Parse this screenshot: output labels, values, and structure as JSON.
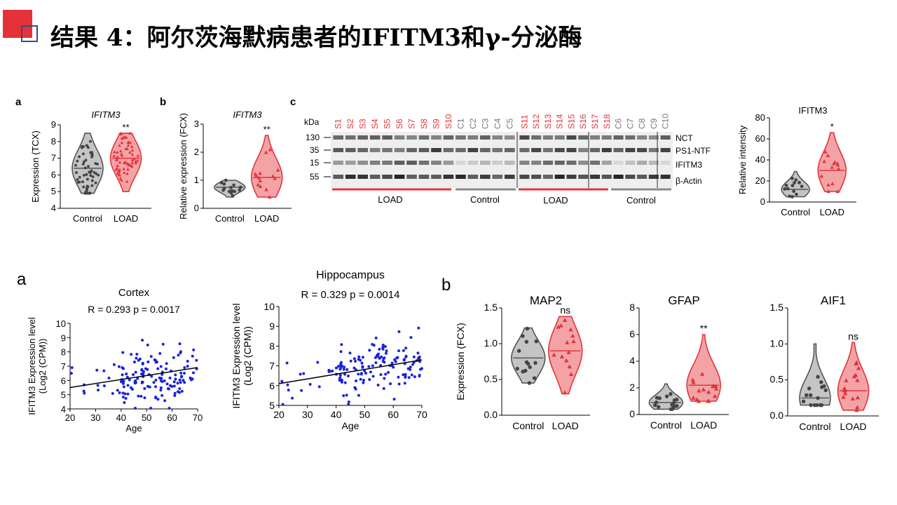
{
  "slide": {
    "title": "结果 4：阿尔茨海默病患者的IFITM3和γ-分泌酶"
  },
  "colors": {
    "accent_red": "#e53238",
    "accent_blue": "#2e4f8a",
    "control": "#555555",
    "load": "#e2343a",
    "scatter": "#1a24d8"
  },
  "panels": {
    "a": {
      "label": "a",
      "title": "IFITM3",
      "sig": "**"
    },
    "b": {
      "label": "b",
      "title": "IFITM3",
      "sig": "**"
    },
    "c": {
      "label": "c",
      "kda_label": "kDa",
      "mw_markers": [
        "130",
        "35",
        "15",
        "55"
      ],
      "lanes_left": [
        "S1",
        "S2",
        "S3",
        "S4",
        "S5",
        "S6",
        "S7",
        "S8",
        "S9",
        "S10",
        "C1",
        "C2",
        "C3",
        "C4",
        "C5"
      ],
      "lanes_right": [
        "S11",
        "S12",
        "S13",
        "S14",
        "S15",
        "S16",
        "S17",
        "S18",
        "C6",
        "C7",
        "C8",
        "C9",
        "C10"
      ],
      "bands": [
        "NCT",
        "PS1-NTF",
        "IFITM3",
        "β-Actin"
      ],
      "groups": [
        "LOAD",
        "Control",
        "LOAD",
        "Control"
      ]
    },
    "c_violin": {
      "title": "IFITM3",
      "sig": "*"
    },
    "a2": {
      "label": "a"
    },
    "b2": {
      "label": "b"
    }
  },
  "chart_data": [
    {
      "id": "a",
      "type": "violin",
      "title": "IFITM3",
      "ylabel": "Expression (TCX)",
      "ylim": [
        4,
        9
      ],
      "yticks": [
        4,
        5,
        6,
        7,
        8,
        9
      ],
      "categories": [
        "Control",
        "LOAD"
      ],
      "significance": "**",
      "series": [
        {
          "name": "Control",
          "median": 6.4,
          "min": 4.9,
          "max": 8.5
        },
        {
          "name": "LOAD",
          "median": 7.0,
          "min": 5.0,
          "max": 8.5
        }
      ]
    },
    {
      "id": "b",
      "type": "violin",
      "title": "IFITM3",
      "ylabel": "Relative expression (FCX)",
      "ylim": [
        0,
        3
      ],
      "yticks": [
        0,
        1,
        2,
        3
      ],
      "categories": [
        "Control",
        "LOAD"
      ],
      "significance": "**",
      "series": [
        {
          "name": "Control",
          "median": 0.75,
          "min": 0.4,
          "max": 1.0
        },
        {
          "name": "LOAD",
          "median": 1.1,
          "min": 0.4,
          "max": 2.6
        }
      ]
    },
    {
      "id": "c",
      "type": "violin",
      "title": "IFITM3",
      "ylabel": "Relative intensity",
      "ylim": [
        0,
        80
      ],
      "yticks": [
        0,
        20,
        40,
        60,
        80
      ],
      "categories": [
        "Control",
        "LOAD"
      ],
      "significance": "*",
      "series": [
        {
          "name": "Control",
          "median": 12,
          "min": 5,
          "max": 29
        },
        {
          "name": "LOAD",
          "median": 30,
          "min": 10,
          "max": 66
        }
      ]
    },
    {
      "id": "cortex",
      "type": "scatter",
      "title": "Cortex",
      "annotation": "R = 0.293   p = 0.0017",
      "xlabel": "Age",
      "ylabel": "IFITM3 Expression level (Log2 (CPM))",
      "xlim": [
        20,
        70
      ],
      "ylim": [
        4,
        10
      ],
      "xticks": [
        20,
        30,
        40,
        50,
        60,
        70
      ],
      "yticks": [
        4,
        5,
        6,
        7,
        8,
        9,
        10
      ],
      "fit_line": {
        "x": [
          20,
          70
        ],
        "y": [
          5.5,
          6.9
        ]
      },
      "n_points": 150,
      "point_mean": 6.6,
      "point_spread": 0.9
    },
    {
      "id": "hippocampus",
      "type": "scatter",
      "title": "Hippocampus",
      "annotation": "R = 0.329   p = 0.0014",
      "xlabel": "Age",
      "ylabel": "IFITM3 Expression level (Log2 (CPM))",
      "xlim": [
        20,
        70
      ],
      "ylim": [
        5,
        10
      ],
      "xticks": [
        20,
        30,
        40,
        50,
        60,
        70
      ],
      "yticks": [
        5,
        6,
        7,
        8,
        9,
        10
      ],
      "fit_line": {
        "x": [
          20,
          70
        ],
        "y": [
          6.1,
          7.3
        ]
      },
      "n_points": 150,
      "point_mean": 7.0,
      "point_spread": 0.7
    },
    {
      "id": "map2",
      "type": "violin",
      "title": "MAP2",
      "ylabel": "Expression (FCX)",
      "ylim": [
        0,
        1.5
      ],
      "yticks": [
        0.0,
        0.5,
        1.0,
        1.5
      ],
      "categories": [
        "Control",
        "LOAD"
      ],
      "significance": "ns",
      "series": [
        {
          "name": "Control",
          "median": 0.8,
          "min": 0.45,
          "max": 1.22
        },
        {
          "name": "LOAD",
          "median": 0.9,
          "min": 0.3,
          "max": 1.38
        }
      ]
    },
    {
      "id": "gfap",
      "type": "violin",
      "title": "GFAP",
      "ylim": [
        0,
        8
      ],
      "yticks": [
        0,
        2,
        4,
        6,
        8
      ],
      "categories": [
        "Control",
        "LOAD"
      ],
      "significance": "**",
      "series": [
        {
          "name": "Control",
          "median": 0.9,
          "min": 0.4,
          "max": 2.3
        },
        {
          "name": "LOAD",
          "median": 2.2,
          "min": 1.0,
          "max": 6.0
        }
      ]
    },
    {
      "id": "aif1",
      "type": "violin",
      "title": "AIF1",
      "ylim": [
        0,
        1.5
      ],
      "yticks": [
        0.0,
        0.5,
        1.0,
        1.5
      ],
      "categories": [
        "Control",
        "LOAD"
      ],
      "significance": "ns",
      "series": [
        {
          "name": "Control",
          "median": 0.25,
          "min": 0.15,
          "max": 1.0
        },
        {
          "name": "LOAD",
          "median": 0.35,
          "min": 0.08,
          "max": 1.02
        }
      ]
    }
  ]
}
